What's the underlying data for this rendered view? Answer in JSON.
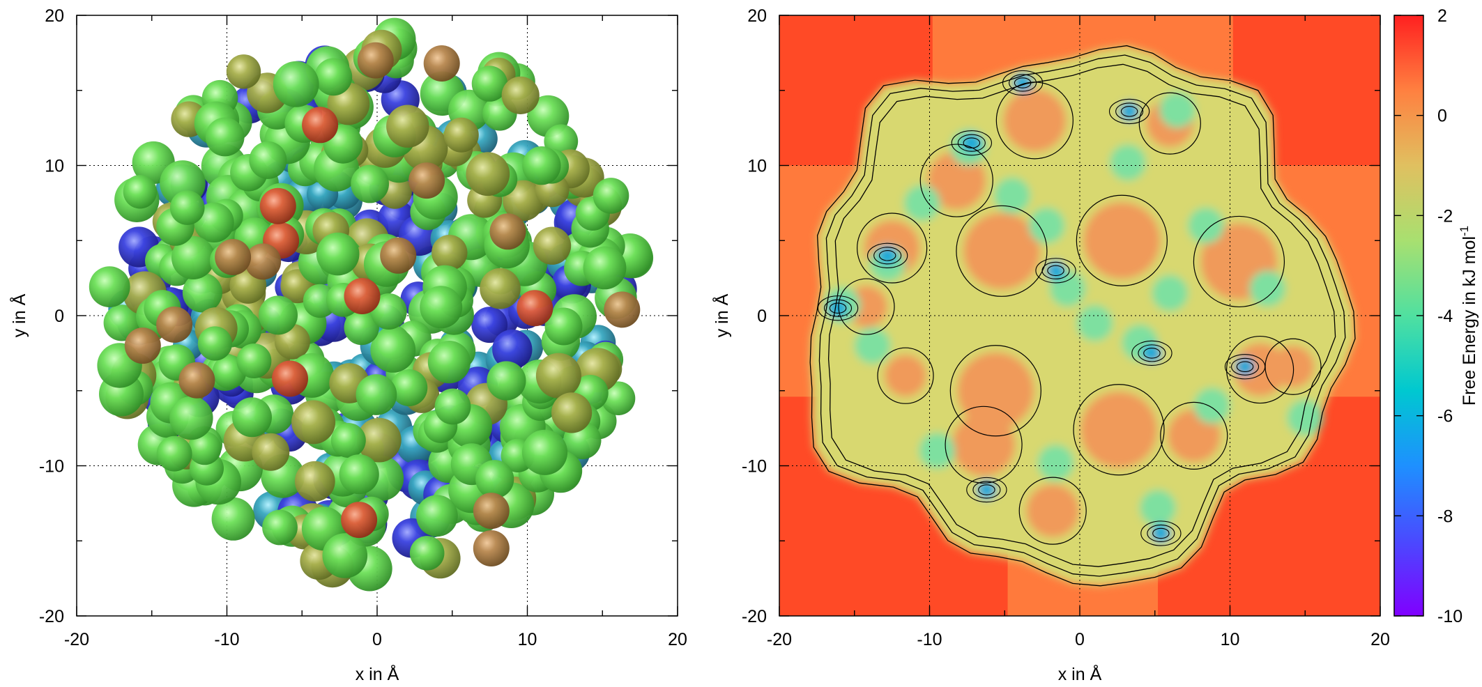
{
  "chart_data": [
    {
      "type": "scatter",
      "title": "",
      "xlabel": "x in Å",
      "ylabel": "y in Å",
      "xlim": [
        -20,
        20
      ],
      "ylim": [
        -20,
        20
      ],
      "x_ticks": [
        -20,
        -10,
        0,
        10,
        20
      ],
      "y_ticks": [
        -20,
        -10,
        0,
        10,
        20
      ],
      "grid": true,
      "grid_style": "dotted",
      "colors": {
        "frame": "#000000",
        "blue": "#4040e8",
        "teal": "#3aa0b8",
        "green": "#5ad85a",
        "olive": "#a8a850",
        "tan": "#b88850",
        "red": "#d85a40"
      }
    },
    {
      "type": "heatmap",
      "title": "",
      "xlabel": "x in Å",
      "ylabel": "y in Å",
      "xlim": [
        -20,
        20
      ],
      "ylim": [
        -20,
        20
      ],
      "x_ticks": [
        -20,
        -10,
        0,
        10,
        20
      ],
      "y_ticks": [
        -20,
        -10,
        0,
        10,
        20
      ],
      "grid": true,
      "grid_style": "dotted",
      "contours": true,
      "colorbar": {
        "label": "Free Energy in kJ mol",
        "label_superscript": "-1",
        "range": [
          -10,
          2
        ],
        "ticks": [
          2,
          0,
          -2,
          -4,
          -6,
          -8,
          -10
        ],
        "colors": [
          "#8000ff",
          "#4a4aff",
          "#1e90ff",
          "#00c8d0",
          "#50e0a0",
          "#a8e070",
          "#e0c060",
          "#ff8040",
          "#ff2020"
        ]
      },
      "background_value_outer": 1.0,
      "background_value_inner": 0.5
    }
  ]
}
